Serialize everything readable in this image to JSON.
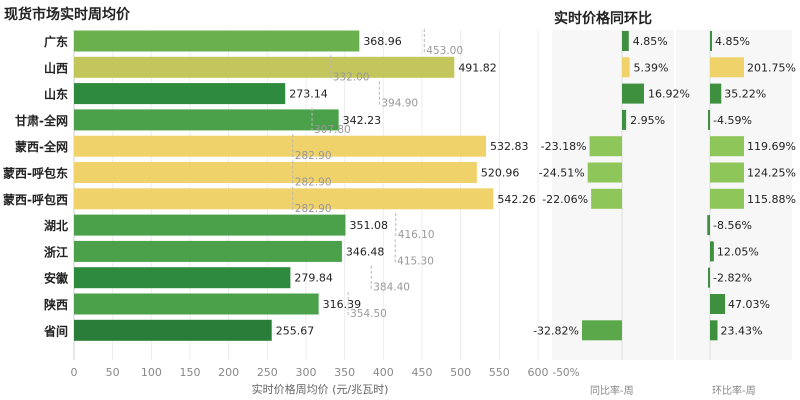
{
  "main_title": "现货市场实时周均价",
  "side_title": "实时价格同环比",
  "chart_data": [
    {
      "type": "bar",
      "orientation": "horizontal",
      "title": "现货市场实时周均价",
      "xlabel": "实时价格周均价 (元/兆瓦时)",
      "xlim": [
        0,
        600
      ],
      "ticks": [
        0,
        50,
        100,
        150,
        200,
        250,
        300,
        350,
        400,
        450,
        500,
        550,
        600
      ],
      "categories": [
        "广东",
        "山西",
        "山东",
        "甘肃-全网",
        "蒙西-全网",
        "蒙西-呼包东",
        "蒙西-呼包西",
        "湖北",
        "浙江",
        "安徽",
        "陕西",
        "省间"
      ],
      "values": [
        368.96,
        491.82,
        273.14,
        342.23,
        532.83,
        520.96,
        542.26,
        351.08,
        346.48,
        279.84,
        316.39,
        255.67
      ],
      "labels": [
        "368.96",
        "491.82",
        "273.14",
        "342.23",
        "532.83",
        "520.96",
        "542.26",
        "351.08",
        "346.48",
        "279.84",
        "316.39",
        "255.67"
      ],
      "reference_values": [
        453.0,
        332.0,
        394.9,
        307.8,
        282.9,
        282.9,
        282.9,
        416.1,
        415.3,
        384.4,
        354.5,
        null
      ],
      "reference_labels": [
        "453.00",
        "332.00",
        "394.90",
        "307.80",
        "282.90",
        "282.90",
        "282.90",
        "416.10",
        "415.30",
        "384.40",
        "354.50",
        ""
      ],
      "bar_colors": [
        "#6ab04c",
        "#c3c65a",
        "#2e8b3e",
        "#4aa14a",
        "#efd26a",
        "#efd26a",
        "#efd26a",
        "#4aa14a",
        "#4aa14a",
        "#2e8b3e",
        "#4aa14a",
        "#2a7d38"
      ]
    },
    {
      "type": "bar",
      "orientation": "horizontal",
      "title": "实时价格同环比",
      "xlabel": "同比率-周",
      "tick_labels": [
        "-50%"
      ],
      "scale": [
        -50,
        0
      ],
      "values": [
        4.85,
        5.39,
        16.92,
        2.95,
        -23.18,
        -24.51,
        -22.06,
        null,
        null,
        null,
        null,
        -32.82
      ],
      "labels": [
        "4.85%",
        "5.39%",
        "16.92%",
        "2.95%",
        "-23.18%",
        "-24.51%",
        "-22.06%",
        "",
        "",
        "",
        "",
        "-32.82%"
      ],
      "bar_colors": [
        "#3e8f3e",
        "#efd26a",
        "#3e8f3e",
        "#3e8f3e",
        "#8fc65a",
        "#8fc65a",
        "#8fc65a",
        "",
        "",
        "",
        "",
        "#5aa84a"
      ]
    },
    {
      "type": "bar",
      "orientation": "horizontal",
      "title": "实时价格同环比",
      "xlabel": "环比率-周",
      "values": [
        4.85,
        201.75,
        35.22,
        -4.59,
        119.69,
        124.25,
        115.88,
        -8.56,
        12.05,
        -2.82,
        47.03,
        23.43
      ],
      "labels": [
        "4.85%",
        "201.75%",
        "35.22%",
        "-4.59%",
        "119.69%",
        "124.25%",
        "115.88%",
        "-8.56%",
        "12.05%",
        "-2.82%",
        "47.03%",
        "23.43%"
      ],
      "bar_colors": [
        "#3e8f3e",
        "#efd26a",
        "#3e8f3e",
        "#3e8f3e",
        "#8fc65a",
        "#8fc65a",
        "#8fc65a",
        "#3e8f3e",
        "#3e8f3e",
        "#3e8f3e",
        "#3e8f3e",
        "#3e8f3e"
      ]
    }
  ]
}
